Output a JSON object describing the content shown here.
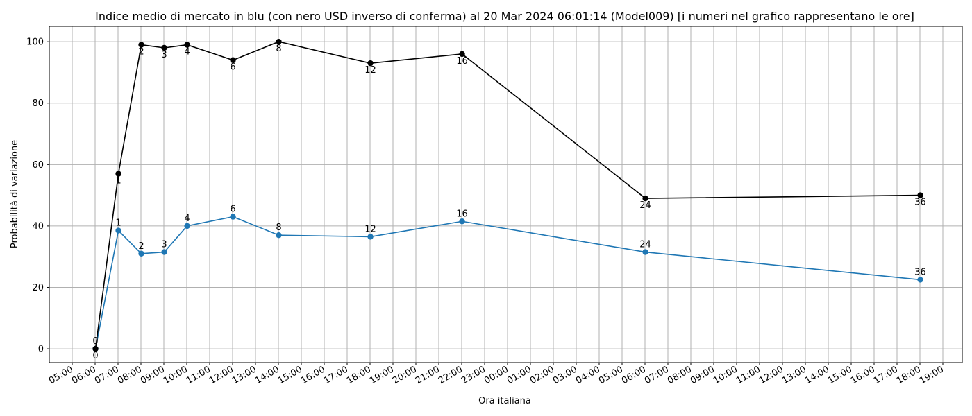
{
  "chart_data": {
    "type": "line",
    "title": "Indice medio di mercato in blu (con nero USD inverso di conferma) al 20 Mar 2024 06:01:14 (Model009) [i numeri nel grafico rappresentano le ore]",
    "xlabel": "Ora italiana",
    "ylabel": "Probabilità di variazione",
    "ylim": [
      -4.5,
      105
    ],
    "yticks": [
      0,
      20,
      40,
      60,
      80,
      100
    ],
    "grid": true,
    "x_axis": {
      "range_start": "2024-03-20 05:00",
      "range_end": "2024-03-21 19:00",
      "tick_labels": [
        "05:00",
        "06:00",
        "07:00",
        "08:00",
        "09:00",
        "10:00",
        "11:00",
        "12:00",
        "13:00",
        "14:00",
        "15:00",
        "16:00",
        "17:00",
        "18:00",
        "19:00",
        "20:00",
        "21:00",
        "22:00",
        "23:00",
        "00:00",
        "01:00",
        "02:00",
        "03:00",
        "04:00",
        "05:00",
        "06:00",
        "07:00",
        "08:00",
        "09:00",
        "10:00",
        "11:00",
        "12:00",
        "13:00",
        "14:00",
        "15:00",
        "16:00",
        "17:00",
        "18:00",
        "19:00"
      ]
    },
    "series": [
      {
        "color": "#1f77b4",
        "points": [
          {
            "x": "2024-03-20 06:01",
            "y": 0,
            "label": "0"
          },
          {
            "x": "2024-03-20 07:01",
            "y": 38.5,
            "label": "1"
          },
          {
            "x": "2024-03-20 08:01",
            "y": 31,
            "label": "2"
          },
          {
            "x": "2024-03-20 09:01",
            "y": 31.5,
            "label": "3"
          },
          {
            "x": "2024-03-20 10:01",
            "y": 40,
            "label": "4"
          },
          {
            "x": "2024-03-20 12:01",
            "y": 43,
            "label": "6"
          },
          {
            "x": "2024-03-20 14:01",
            "y": 37,
            "label": "8"
          },
          {
            "x": "2024-03-20 18:01",
            "y": 36.5,
            "label": "12"
          },
          {
            "x": "2024-03-20 22:01",
            "y": 41.5,
            "label": "16"
          },
          {
            "x": "2024-03-21 06:01",
            "y": 31.5,
            "label": "24"
          },
          {
            "x": "2024-03-21 18:01",
            "y": 22.5,
            "label": "36"
          }
        ]
      },
      {
        "color": "#000000",
        "points": [
          {
            "x": "2024-03-20 06:01",
            "y": 0,
            "label": "0"
          },
          {
            "x": "2024-03-20 07:01",
            "y": 57,
            "label": "1"
          },
          {
            "x": "2024-03-20 08:01",
            "y": 99,
            "label": "2"
          },
          {
            "x": "2024-03-20 09:01",
            "y": 98,
            "label": "3"
          },
          {
            "x": "2024-03-20 10:01",
            "y": 99,
            "label": "4"
          },
          {
            "x": "2024-03-20 12:01",
            "y": 94,
            "label": "6"
          },
          {
            "x": "2024-03-20 14:01",
            "y": 100,
            "label": "8"
          },
          {
            "x": "2024-03-20 18:01",
            "y": 93,
            "label": "12"
          },
          {
            "x": "2024-03-20 22:01",
            "y": 96,
            "label": "16"
          },
          {
            "x": "2024-03-21 06:01",
            "y": 49,
            "label": "24"
          },
          {
            "x": "2024-03-21 18:01",
            "y": 50,
            "label": "36"
          }
        ]
      }
    ]
  }
}
